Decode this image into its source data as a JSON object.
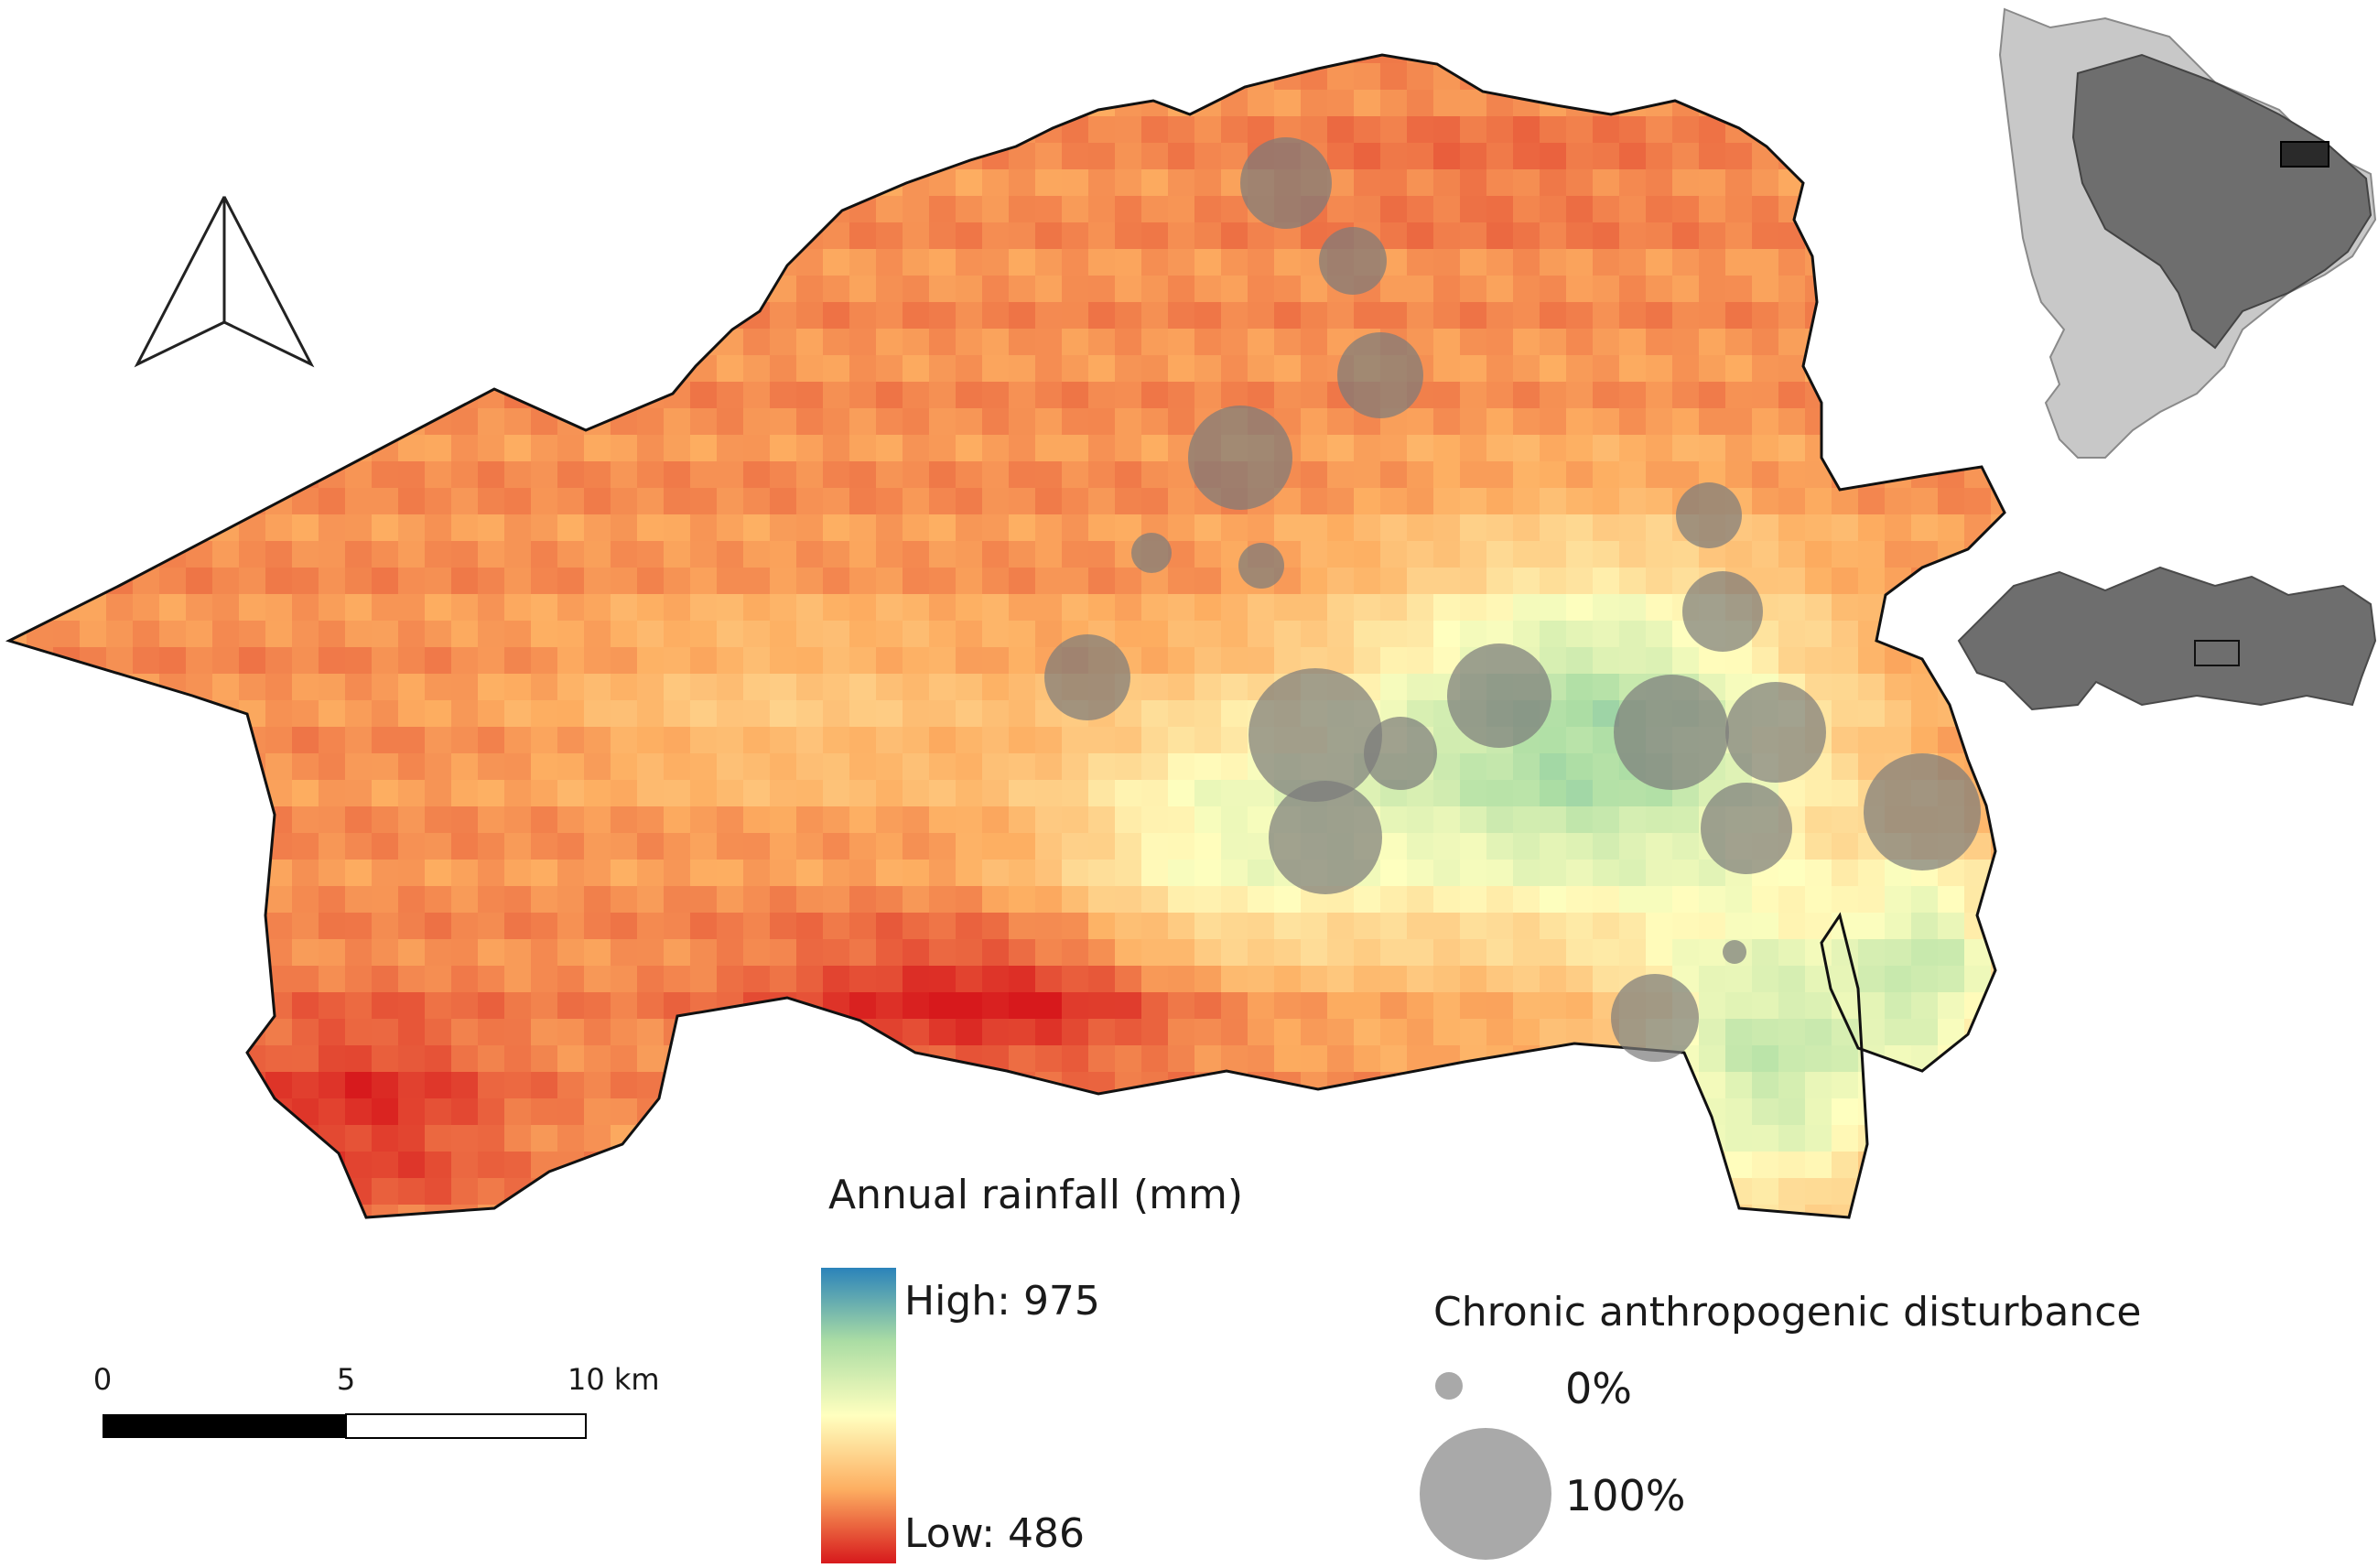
{
  "rainfall_legend": {
    "title": "Annual rainfall (mm)",
    "high_label": "High: 975",
    "low_label": "Low: 486",
    "high_value": 975,
    "low_value": 486,
    "ramp_colors": [
      "#2b83ba",
      "#abdda4",
      "#ffffbf",
      "#fdae61",
      "#d7191c"
    ]
  },
  "disturbance_legend": {
    "title": "Chronic anthropogenic disturbance",
    "min_label": "0%",
    "max_label": "100%"
  },
  "scale_bar": {
    "tick_labels": [
      "0",
      "5",
      "10 km"
    ]
  },
  "north_arrow": {
    "icon": "north-arrow-icon"
  },
  "colors": {
    "boundary": "#111111",
    "bubble": "#7a7a7a",
    "legend_bubble": "#a9a9a9",
    "inset_country": "#6e6e6e",
    "inset_continent": "#c8c8c8"
  }
}
